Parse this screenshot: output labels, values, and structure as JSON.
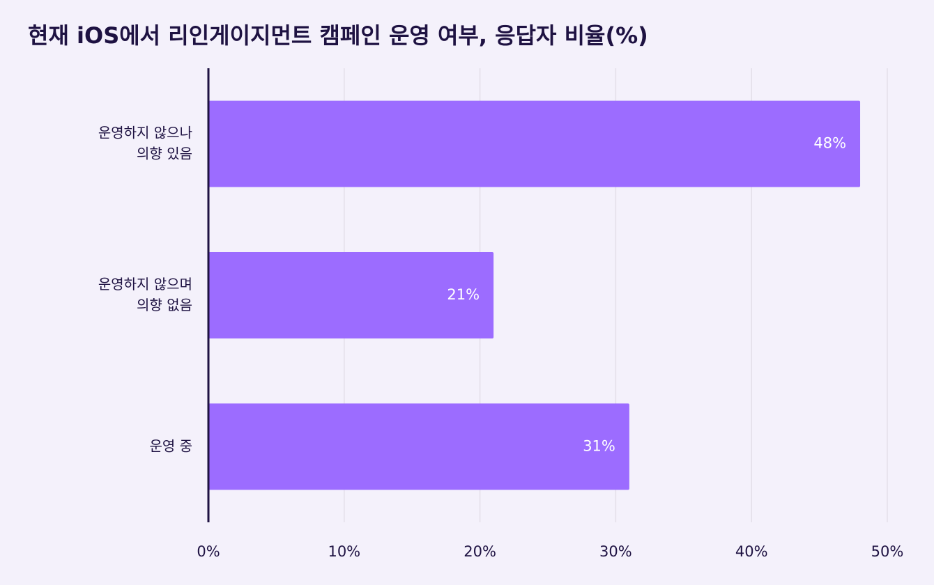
{
  "chart_data": {
    "type": "bar",
    "orientation": "horizontal",
    "title": "현재 iOS에서 리인게이지먼트 캠페인 운영 여부, 응답자 비율(%)",
    "categories": [
      [
        "운영하지 않으나",
        "의향 있음"
      ],
      [
        "운영하지 않으며",
        "의향 없음"
      ],
      [
        "운영 중"
      ]
    ],
    "values": [
      48,
      21,
      31
    ],
    "data_labels": [
      "48%",
      "21%",
      "31%"
    ],
    "xlim": [
      0,
      50
    ],
    "ticks": [
      0,
      10,
      20,
      30,
      40,
      50
    ],
    "tick_labels": [
      "0%",
      "10%",
      "20%",
      "30%",
      "40%",
      "50%"
    ],
    "grid": true,
    "legend": "none",
    "colors": {
      "bar": "#9c6cff",
      "axis": "#1e1242",
      "grid": "#e3dfe9",
      "text": "#1e1242",
      "background": "#f4f1fb"
    }
  }
}
